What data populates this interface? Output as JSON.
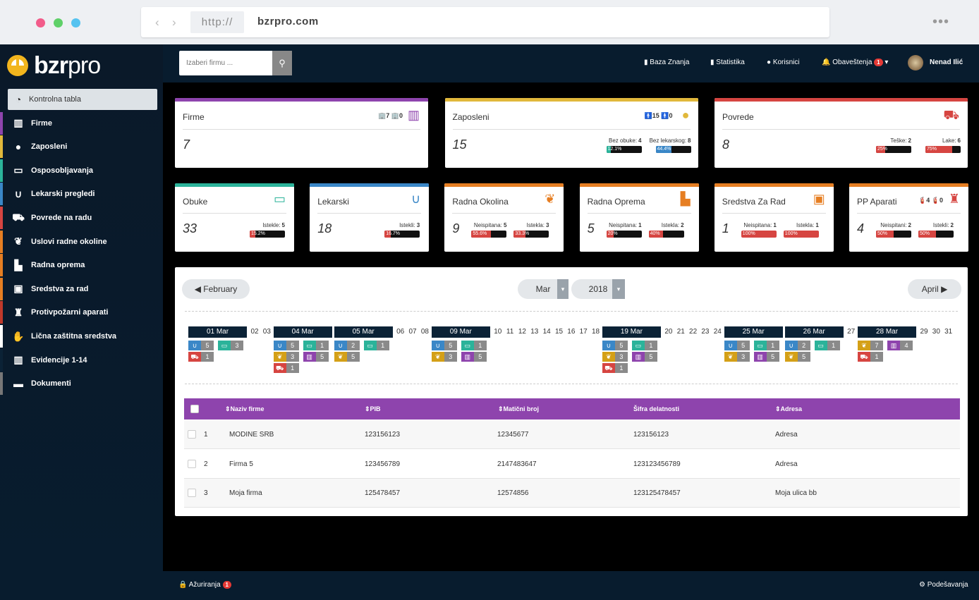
{
  "browser": {
    "protocol": "http://",
    "host": "bzrpro.com"
  },
  "app": {
    "logo_bold": "bzr",
    "logo_light": "pro"
  },
  "sidebar": {
    "items": [
      {
        "label": "Kontrolna tabla",
        "icon": "gauge-icon",
        "color": "#dde2e6"
      },
      {
        "label": "Firme",
        "icon": "building-icon",
        "color": "#8e44ad"
      },
      {
        "label": "Zaposleni",
        "icon": "user-icon",
        "color": "#e1b83b"
      },
      {
        "label": "Osposobljavanja",
        "icon": "book-icon",
        "color": "#2bb39a"
      },
      {
        "label": "Lekarski pregledi",
        "icon": "stethoscope-icon",
        "color": "#3a87c7"
      },
      {
        "label": "Povrede na radu",
        "icon": "ambulance-icon",
        "color": "#d64541"
      },
      {
        "label": "Uslovi radne okoline",
        "icon": "leaf-icon",
        "color": "#e67e22"
      },
      {
        "label": "Radna oprema",
        "icon": "factory-icon",
        "color": "#e67e22"
      },
      {
        "label": "Sredstva za rad",
        "icon": "briefcase-icon",
        "color": "#e67e22"
      },
      {
        "label": "Protivpožarni aparati",
        "icon": "extinguisher-icon",
        "color": "#c0392b"
      },
      {
        "label": "Lična zaštitna sredstva",
        "icon": "glove-icon",
        "color": "#ffffff"
      },
      {
        "label": "Evidencije 1-14",
        "icon": "building-icon",
        "color": "#0b2236"
      },
      {
        "label": "Dokumenti",
        "icon": "folder-icon",
        "color": "#777777"
      }
    ]
  },
  "topbar": {
    "search_placeholder": "Izaberi firmu ...",
    "baza": "Baza Znanja",
    "statistika": "Statistika",
    "korisnici": "Korisnici",
    "obavestenja": "Obaveštenja",
    "obavestenja_count": "1",
    "user": "Nenad Ilić"
  },
  "footer": {
    "azuriranja": "Ažuriranja",
    "azuriranja_count": "1",
    "podesavanja": "Podešavanja"
  },
  "cards_top": [
    {
      "title": "Firme",
      "value": "7",
      "accent": "#8e44ad",
      "meta": "🏢7 🏢0"
    },
    {
      "title": "Zaposleni",
      "value": "15",
      "accent": "#e1b83b",
      "meta": "🚹15 🚹0",
      "stats": [
        {
          "label": "Bez obuke:",
          "count": "4",
          "pct": "12.1%",
          "frac": 0.121,
          "color": "#2bb39a"
        },
        {
          "label": "Bez lekarskog:",
          "count": "8",
          "pct": "44.4%",
          "frac": 0.444,
          "color": "#3a87c7"
        }
      ]
    },
    {
      "title": "Povrede",
      "value": "8",
      "accent": "#d64541",
      "stats": [
        {
          "label": "Teške:",
          "count": "2",
          "pct": "25%",
          "frac": 0.25,
          "color": "#d64541"
        },
        {
          "label": "Lake:",
          "count": "6",
          "pct": "75%",
          "frac": 0.75,
          "color": "#d64541"
        }
      ]
    }
  ],
  "cards_bottom": [
    {
      "title": "Obuke",
      "value": "33",
      "accent": "#2bb39a",
      "stats": [
        {
          "label": "Istekle:",
          "count": "5",
          "pct": "15.2%",
          "frac": 0.152,
          "color": "#d64541"
        }
      ]
    },
    {
      "title": "Lekarski",
      "value": "18",
      "accent": "#3a87c7",
      "stats": [
        {
          "label": "Istekli:",
          "count": "3",
          "pct": "16.7%",
          "frac": 0.167,
          "color": "#d64541"
        }
      ]
    },
    {
      "title": "Radna Okolina",
      "value": "9",
      "accent": "#e67e22",
      "stats": [
        {
          "label": "Neispitana:",
          "count": "5",
          "pct": "55.6%",
          "frac": 0.556,
          "color": "#d64541"
        },
        {
          "label": "Istekla:",
          "count": "3",
          "pct": "33.3%",
          "frac": 0.333,
          "color": "#d64541"
        }
      ]
    },
    {
      "title": "Radna Oprema",
      "value": "5",
      "accent": "#e67e22",
      "stats": [
        {
          "label": "Neispitana:",
          "count": "1",
          "pct": "20%",
          "frac": 0.2,
          "color": "#d64541"
        },
        {
          "label": "Istekla:",
          "count": "2",
          "pct": "40%",
          "frac": 0.4,
          "color": "#d64541"
        }
      ]
    },
    {
      "title": "Sredstva Za Rad",
      "value": "1",
      "accent": "#e67e22",
      "stats": [
        {
          "label": "Neispitana:",
          "count": "1",
          "pct": "100%",
          "frac": 1.0,
          "color": "#d64541"
        },
        {
          "label": "Istekla:",
          "count": "1",
          "pct": "100%",
          "frac": 1.0,
          "color": "#d64541"
        }
      ]
    },
    {
      "title": "PP Aparati",
      "value": "4",
      "accent": "#e67e22",
      "meta": "🧯4 🧯0",
      "stats": [
        {
          "label": "Neispitani:",
          "count": "2",
          "pct": "50%",
          "frac": 0.5,
          "color": "#d64541"
        },
        {
          "label": "Istekli:",
          "count": "2",
          "pct": "50%",
          "frac": 0.5,
          "color": "#d64541"
        }
      ]
    }
  ],
  "calendar": {
    "prev": "February",
    "next": "April",
    "month": "Mar",
    "year": "2018",
    "days": [
      {
        "label": "01 Mar",
        "events": [
          {
            "icon": "stethoscope-icon",
            "color": "#3a87c7",
            "n": "5"
          },
          {
            "icon": "book-icon",
            "color": "#2bb39a",
            "n": "3"
          },
          {
            "icon": "ambulance-icon",
            "color": "#d64541",
            "n": "1"
          }
        ]
      },
      {
        "label": "02"
      },
      {
        "label": "03"
      },
      {
        "label": "04 Mar",
        "events": [
          {
            "icon": "stethoscope-icon",
            "color": "#3a87c7",
            "n": "5"
          },
          {
            "icon": "book-icon",
            "color": "#2bb39a",
            "n": "1"
          },
          {
            "icon": "leaf-icon",
            "color": "#d4a017",
            "n": "3"
          },
          {
            "icon": "building-icon",
            "color": "#8e44ad",
            "n": "5"
          },
          {
            "icon": "ambulance-icon",
            "color": "#d64541",
            "n": "1"
          }
        ]
      },
      {
        "label": "05 Mar",
        "events": [
          {
            "icon": "stethoscope-icon",
            "color": "#3a87c7",
            "n": "2"
          },
          {
            "icon": "book-icon",
            "color": "#2bb39a",
            "n": "1"
          },
          {
            "icon": "leaf-icon",
            "color": "#d4a017",
            "n": "5"
          }
        ]
      },
      {
        "label": "06"
      },
      {
        "label": "07"
      },
      {
        "label": "08"
      },
      {
        "label": "09 Mar",
        "events": [
          {
            "icon": "stethoscope-icon",
            "color": "#3a87c7",
            "n": "5"
          },
          {
            "icon": "book-icon",
            "color": "#2bb39a",
            "n": "1"
          },
          {
            "icon": "leaf-icon",
            "color": "#d4a017",
            "n": "3"
          },
          {
            "icon": "building-icon",
            "color": "#8e44ad",
            "n": "5"
          }
        ]
      },
      {
        "label": "10"
      },
      {
        "label": "11"
      },
      {
        "label": "12"
      },
      {
        "label": "13"
      },
      {
        "label": "14"
      },
      {
        "label": "15"
      },
      {
        "label": "16"
      },
      {
        "label": "17"
      },
      {
        "label": "18"
      },
      {
        "label": "19 Mar",
        "events": [
          {
            "icon": "stethoscope-icon",
            "color": "#3a87c7",
            "n": "5"
          },
          {
            "icon": "book-icon",
            "color": "#2bb39a",
            "n": "1"
          },
          {
            "icon": "leaf-icon",
            "color": "#d4a017",
            "n": "3"
          },
          {
            "icon": "building-icon",
            "color": "#8e44ad",
            "n": "5"
          },
          {
            "icon": "ambulance-icon",
            "color": "#d64541",
            "n": "1"
          }
        ]
      },
      {
        "label": "20"
      },
      {
        "label": "21"
      },
      {
        "label": "22"
      },
      {
        "label": "23"
      },
      {
        "label": "24"
      },
      {
        "label": "25 Mar",
        "events": [
          {
            "icon": "stethoscope-icon",
            "color": "#3a87c7",
            "n": "5"
          },
          {
            "icon": "book-icon",
            "color": "#2bb39a",
            "n": "1"
          },
          {
            "icon": "leaf-icon",
            "color": "#d4a017",
            "n": "3"
          },
          {
            "icon": "building-icon",
            "color": "#8e44ad",
            "n": "5"
          }
        ]
      },
      {
        "label": "26 Mar",
        "events": [
          {
            "icon": "stethoscope-icon",
            "color": "#3a87c7",
            "n": "2"
          },
          {
            "icon": "book-icon",
            "color": "#2bb39a",
            "n": "1"
          },
          {
            "icon": "leaf-icon",
            "color": "#d4a017",
            "n": "5"
          }
        ]
      },
      {
        "label": "27"
      },
      {
        "label": "28 Mar",
        "events": [
          {
            "icon": "leaf-icon",
            "color": "#d4a017",
            "n": "7"
          },
          {
            "icon": "building-icon",
            "color": "#8e44ad",
            "n": "4"
          },
          {
            "icon": "ambulance-icon",
            "color": "#d64541",
            "n": "1"
          }
        ]
      },
      {
        "label": "29"
      },
      {
        "label": "30"
      },
      {
        "label": "31"
      }
    ]
  },
  "table": {
    "headers": [
      "Naziv firme",
      "PIB",
      "Matični broj",
      "Šifra delatnosti",
      "Adresa"
    ],
    "rows": [
      {
        "num": "1",
        "naziv": "MODINE SRB",
        "pib": "123156123",
        "mb": "12345677",
        "sifra": "123156123",
        "adresa": "Adresa"
      },
      {
        "num": "2",
        "naziv": "Firma 5",
        "pib": "123456789",
        "mb": "2147483647",
        "sifra": "123123456789",
        "adresa": "Adresa"
      },
      {
        "num": "3",
        "naziv": "Moja firma",
        "pib": "125478457",
        "mb": "12574856",
        "sifra": "123125478457",
        "adresa": "Moja ulica bb"
      }
    ]
  }
}
